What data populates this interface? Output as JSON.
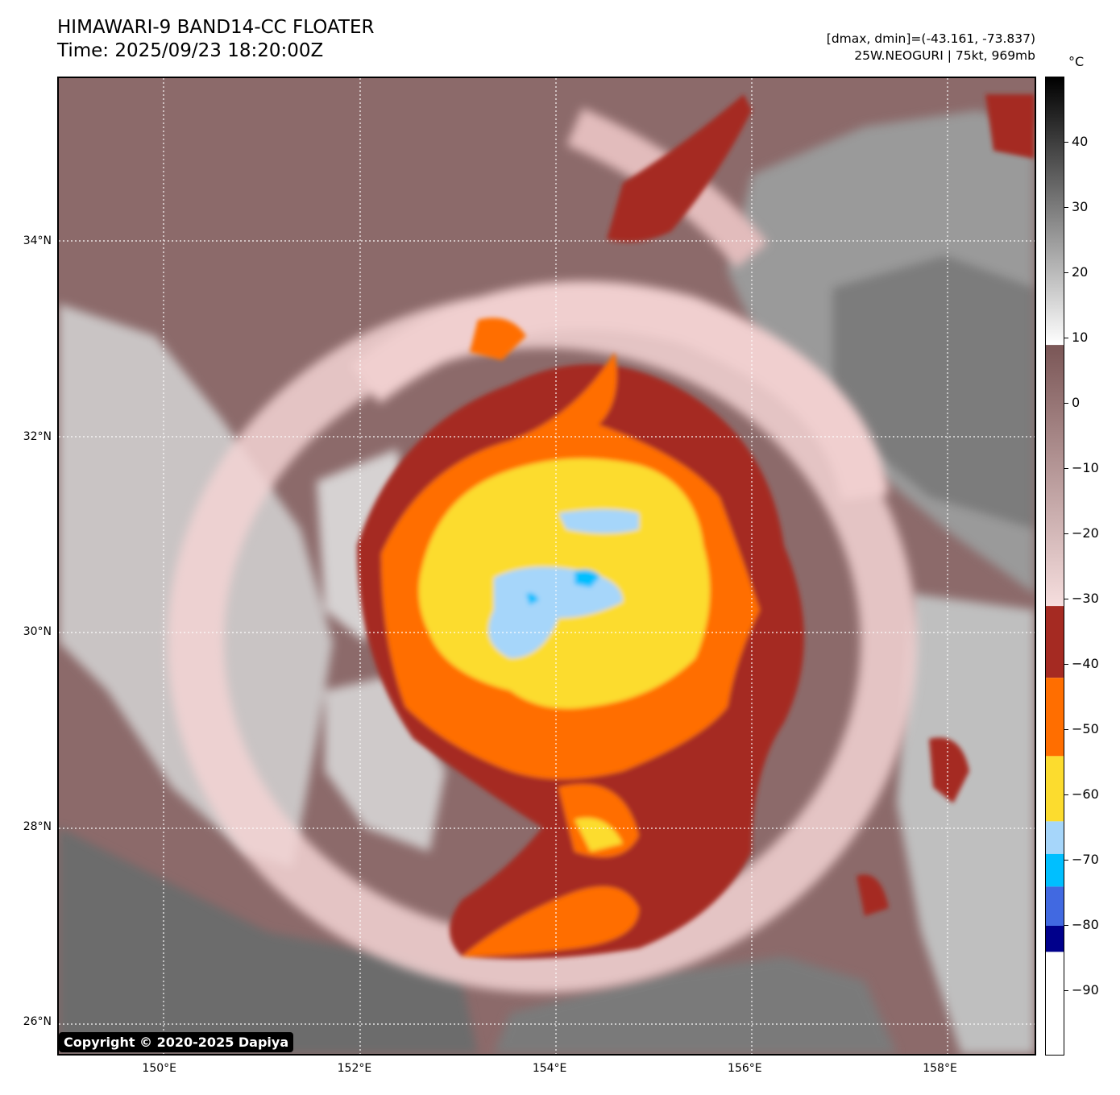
{
  "header": {
    "title_line1": "HIMAWARI-9 BAND14-CC FLOATER",
    "title_line2": "Time: 2025/09/23 18:20:00Z",
    "range_text": "[dmax, dmin]=(-43.161, -73.837)",
    "storm_text": "25W.NEOGURI | 75kt, 969mb"
  },
  "axes": {
    "lat_labels": [
      {
        "text": "34°N",
        "value": 34
      },
      {
        "text": "32°N",
        "value": 32
      },
      {
        "text": "30°N",
        "value": 30
      },
      {
        "text": "28°N",
        "value": 28
      },
      {
        "text": "26°N",
        "value": 26
      }
    ],
    "lon_labels": [
      {
        "text": "150°E",
        "value": 150
      },
      {
        "text": "152°E",
        "value": 152
      },
      {
        "text": "154°E",
        "value": 154
      },
      {
        "text": "156°E",
        "value": 156
      },
      {
        "text": "158°E",
        "value": 158
      }
    ],
    "lat_range": [
      25.68,
      35.68
    ],
    "lon_range": [
      148.97,
      158.97
    ],
    "grid": "dotted white"
  },
  "colorbar": {
    "unit": "°C",
    "range": [
      -100,
      50
    ],
    "ticks": [
      {
        "text": "40",
        "value": 40
      },
      {
        "text": "30",
        "value": 30
      },
      {
        "text": "20",
        "value": 20
      },
      {
        "text": "10",
        "value": 10
      },
      {
        "text": "0",
        "value": 0
      },
      {
        "text": "−10",
        "value": -10
      },
      {
        "text": "−20",
        "value": -20
      },
      {
        "text": "−30",
        "value": -30
      },
      {
        "text": "−40",
        "value": -40
      },
      {
        "text": "−50",
        "value": -50
      },
      {
        "text": "−60",
        "value": -60
      },
      {
        "text": "−70",
        "value": -70
      },
      {
        "text": "−80",
        "value": -80
      },
      {
        "text": "−90",
        "value": -90
      }
    ],
    "segments": [
      {
        "from": 9,
        "to": 50,
        "gradient": [
          "#ffffff",
          "#000000"
        ]
      },
      {
        "from": -31,
        "to": 9,
        "gradient": [
          "#f6dede",
          "#7a5656"
        ]
      },
      {
        "from": -42,
        "to": -31,
        "color": "#a52a22"
      },
      {
        "from": -54,
        "to": -42,
        "color": "#ff6e00"
      },
      {
        "from": -64,
        "to": -54,
        "color": "#fcdc2e"
      },
      {
        "from": -69,
        "to": -64,
        "color": "#a6d6fa"
      },
      {
        "from": -74,
        "to": -69,
        "color": "#00bfff"
      },
      {
        "from": -80,
        "to": -74,
        "color": "#4169e1"
      },
      {
        "from": -84,
        "to": -80,
        "color": "#00008b"
      },
      {
        "from": -100,
        "to": -84,
        "color": "#ffffff"
      }
    ]
  },
  "copyright": "Copyright © 2020-2025 Dapiya"
}
